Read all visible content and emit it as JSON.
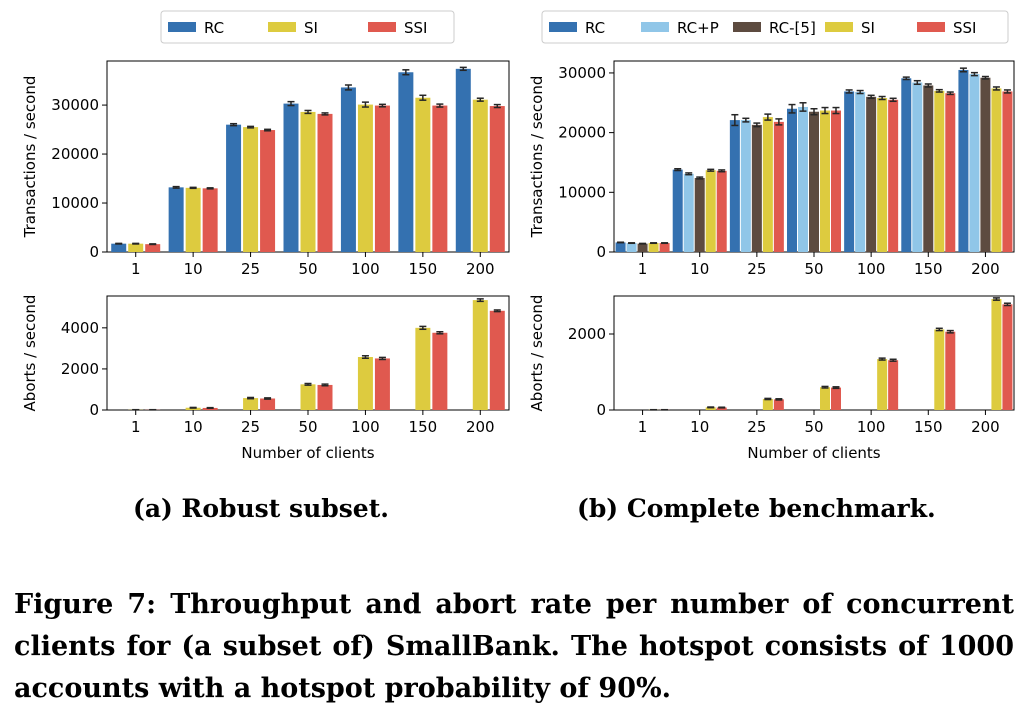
{
  "colors": {
    "RC": "#3471b0",
    "RC+P": "#90c6e8",
    "RC-[5]": "#5d4b40",
    "SI": "#ddcb3f",
    "SSI": "#e0594f"
  },
  "captions": {
    "a": "(a) Robust subset.",
    "b": "(b) Complete benchmark.",
    "figure": "Figure 7: Throughput and abort rate per number of concurrent clients for (a subset of) SmallBank. The hotspot consists of 1000 accounts with a hotspot probability of 90%."
  },
  "chart_data": [
    {
      "id": "a-throughput",
      "type": "bar",
      "legend": [
        "RC",
        "SI",
        "SSI"
      ],
      "legend_position": "top",
      "categories": [
        "1",
        "10",
        "25",
        "50",
        "100",
        "150",
        "200"
      ],
      "xlabel": "",
      "ylabel": "Transactions / second",
      "ylim": [
        0,
        39000
      ],
      "yticks": [
        0,
        10000,
        20000,
        30000
      ],
      "series": [
        {
          "name": "RC",
          "values": [
            1700,
            13200,
            26000,
            30300,
            33600,
            36700,
            37400
          ],
          "errors": [
            60,
            150,
            200,
            400,
            500,
            500,
            300
          ]
        },
        {
          "name": "SI",
          "values": [
            1700,
            13100,
            25500,
            28600,
            30100,
            31500,
            31100
          ],
          "errors": [
            60,
            100,
            150,
            300,
            500,
            500,
            300
          ]
        },
        {
          "name": "SSI",
          "values": [
            1600,
            13000,
            24900,
            28200,
            29900,
            29900,
            29800
          ],
          "errors": [
            60,
            100,
            150,
            200,
            250,
            300,
            300
          ]
        }
      ]
    },
    {
      "id": "a-aborts",
      "type": "bar",
      "categories": [
        "1",
        "10",
        "25",
        "50",
        "100",
        "150",
        "200"
      ],
      "xlabel": "Number of clients",
      "ylabel": "Aborts / second",
      "ylim": [
        0,
        5550
      ],
      "yticks": [
        0,
        2000,
        4000
      ],
      "series": [
        {
          "name": "RC",
          "values": [
            0,
            0,
            0,
            0,
            0,
            0,
            0
          ],
          "errors": [
            0,
            0,
            0,
            0,
            0,
            0,
            0
          ]
        },
        {
          "name": "SI",
          "values": [
            10,
            110,
            580,
            1250,
            2580,
            4000,
            5350
          ],
          "errors": [
            5,
            15,
            30,
            40,
            60,
            70,
            60
          ]
        },
        {
          "name": "SSI",
          "values": [
            10,
            100,
            560,
            1220,
            2510,
            3760,
            4830
          ],
          "errors": [
            5,
            15,
            30,
            40,
            50,
            50,
            40
          ]
        }
      ]
    },
    {
      "id": "b-throughput",
      "type": "bar",
      "legend": [
        "RC",
        "RC+P",
        "RC-[5]",
        "SI",
        "SSI"
      ],
      "legend_position": "top",
      "categories": [
        "1",
        "10",
        "25",
        "50",
        "100",
        "150",
        "200"
      ],
      "xlabel": "",
      "ylabel": "Transactions / second",
      "ylim": [
        0,
        32000
      ],
      "yticks": [
        0,
        10000,
        20000,
        30000
      ],
      "series": [
        {
          "name": "RC",
          "values": [
            1600,
            13800,
            22100,
            24000,
            26900,
            29100,
            30500
          ],
          "errors": [
            40,
            150,
            900,
            700,
            250,
            200,
            300
          ]
        },
        {
          "name": "RC+P",
          "values": [
            1500,
            13100,
            22100,
            24300,
            26800,
            28400,
            29800
          ],
          "errors": [
            40,
            150,
            300,
            700,
            250,
            300,
            250
          ]
        },
        {
          "name": "RC-[5]",
          "values": [
            1400,
            12400,
            21300,
            23500,
            26000,
            27900,
            29200
          ],
          "errors": [
            40,
            150,
            300,
            500,
            250,
            250,
            200
          ]
        },
        {
          "name": "SI",
          "values": [
            1500,
            13700,
            22600,
            23700,
            25800,
            27000,
            27400
          ],
          "errors": [
            40,
            150,
            500,
            500,
            250,
            200,
            250
          ]
        },
        {
          "name": "SSI",
          "values": [
            1500,
            13600,
            21800,
            23700,
            25500,
            26600,
            26900
          ],
          "errors": [
            40,
            150,
            500,
            500,
            250,
            200,
            250
          ]
        }
      ]
    },
    {
      "id": "b-aborts",
      "type": "bar",
      "categories": [
        "1",
        "10",
        "25",
        "50",
        "100",
        "150",
        "200"
      ],
      "xlabel": "Number of clients",
      "ylabel": "Aborts / second",
      "ylim": [
        0,
        3000
      ],
      "yticks": [
        0,
        2000
      ],
      "series": [
        {
          "name": "RC",
          "values": [
            0,
            0,
            0,
            0,
            0,
            0,
            0
          ],
          "errors": [
            0,
            0,
            0,
            0,
            0,
            0,
            0
          ]
        },
        {
          "name": "RC+P",
          "values": [
            0,
            0,
            0,
            0,
            0,
            0,
            0
          ],
          "errors": [
            0,
            0,
            0,
            0,
            0,
            0,
            0
          ]
        },
        {
          "name": "RC-[5]",
          "values": [
            0,
            0,
            0,
            0,
            0,
            0,
            0
          ],
          "errors": [
            0,
            0,
            0,
            0,
            0,
            0,
            0
          ]
        },
        {
          "name": "SI",
          "values": [
            5,
            70,
            290,
            600,
            1340,
            2120,
            2920
          ],
          "errors": [
            3,
            8,
            15,
            20,
            25,
            30,
            30
          ]
        },
        {
          "name": "SSI",
          "values": [
            5,
            65,
            280,
            590,
            1310,
            2060,
            2780
          ],
          "errors": [
            3,
            8,
            15,
            20,
            25,
            30,
            30
          ]
        }
      ]
    }
  ]
}
